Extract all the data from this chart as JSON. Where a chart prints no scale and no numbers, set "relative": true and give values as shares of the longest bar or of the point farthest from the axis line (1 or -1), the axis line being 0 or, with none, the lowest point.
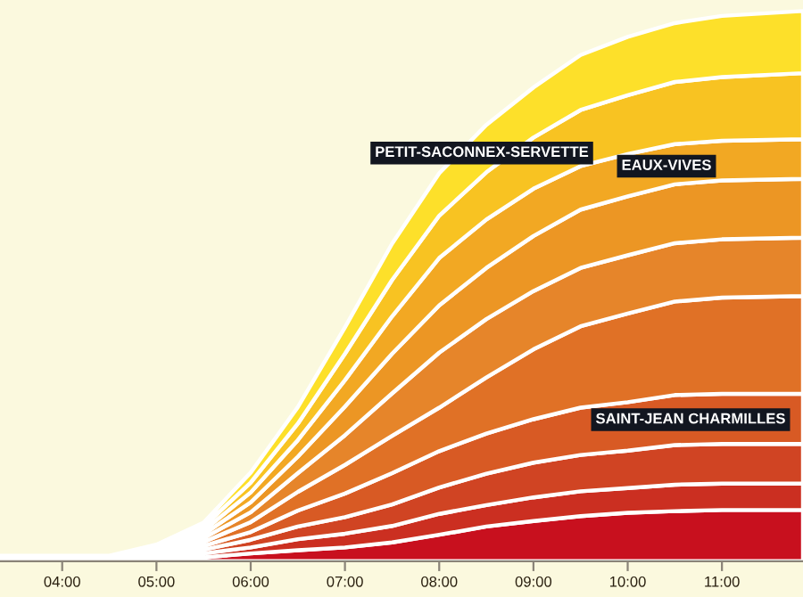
{
  "chart_data": {
    "type": "area",
    "stacked": true,
    "relative": true,
    "legend": false,
    "grid": false,
    "x": [
      3.34,
      4,
      4.5,
      5,
      5.5,
      6,
      6.5,
      7,
      7.5,
      8,
      8.5,
      9,
      9.5,
      10,
      10.5,
      11,
      11.86
    ],
    "xlim": [
      3.34,
      11.86
    ],
    "xticks": [
      {
        "value": 4,
        "label": "04:00"
      },
      {
        "value": 5,
        "label": "05:00"
      },
      {
        "value": 6,
        "label": "06:00"
      },
      {
        "value": 7,
        "label": "07:00"
      },
      {
        "value": 8,
        "label": "08:00"
      },
      {
        "value": 9,
        "label": "09:00"
      },
      {
        "value": 10,
        "label": "10:00"
      },
      {
        "value": 11,
        "label": "11:00"
      }
    ],
    "series": [
      {
        "color": "#c8101e",
        "values": [
          0.001,
          0.001,
          0.001,
          0.003,
          0.007,
          0.014,
          0.02,
          0.025,
          0.034,
          0.048,
          0.063,
          0.073,
          0.082,
          0.088,
          0.091,
          0.093,
          0.093
        ]
      },
      {
        "color": "#cb2f21",
        "values": [
          0.001,
          0.001,
          0.001,
          0.003,
          0.007,
          0.011,
          0.02,
          0.025,
          0.03,
          0.038,
          0.039,
          0.043,
          0.045,
          0.045,
          0.048,
          0.048,
          0.048
        ]
      },
      {
        "color": "#d04423",
        "values": [
          0.001,
          0.001,
          0.001,
          0.003,
          0.007,
          0.014,
          0.023,
          0.03,
          0.039,
          0.048,
          0.057,
          0.063,
          0.066,
          0.068,
          0.072,
          0.072,
          0.072
        ]
      },
      {
        "name": "SAINT-JEAN CHARMILLES",
        "color": "#d85a24",
        "values": [
          0.001,
          0.001,
          0.001,
          0.003,
          0.007,
          0.014,
          0.029,
          0.043,
          0.057,
          0.066,
          0.073,
          0.079,
          0.086,
          0.088,
          0.091,
          0.091,
          0.091
        ]
      },
      {
        "color": "#e07126",
        "values": [
          0.001,
          0.001,
          0.001,
          0.003,
          0.007,
          0.018,
          0.034,
          0.052,
          0.068,
          0.079,
          0.102,
          0.127,
          0.148,
          0.161,
          0.17,
          0.175,
          0.178
        ]
      },
      {
        "color": "#e6852a",
        "values": [
          0.001,
          0.001,
          0.001,
          0.003,
          0.007,
          0.018,
          0.034,
          0.054,
          0.077,
          0.1,
          0.106,
          0.106,
          0.106,
          0.106,
          0.106,
          0.106,
          0.106
        ]
      },
      {
        "color": "#ec9624",
        "values": [
          0.001,
          0.001,
          0.001,
          0.003,
          0.007,
          0.018,
          0.03,
          0.052,
          0.072,
          0.086,
          0.093,
          0.1,
          0.106,
          0.107,
          0.107,
          0.107,
          0.107
        ]
      },
      {
        "name": "EAUX-VIVES",
        "color": "#f2a823",
        "values": [
          0.001,
          0.001,
          0.001,
          0.003,
          0.007,
          0.018,
          0.03,
          0.048,
          0.068,
          0.086,
          0.088,
          0.086,
          0.079,
          0.077,
          0.073,
          0.072,
          0.072
        ]
      },
      {
        "color": "#f8c322",
        "values": [
          0.001,
          0.001,
          0.001,
          0.003,
          0.007,
          0.018,
          0.03,
          0.048,
          0.066,
          0.077,
          0.086,
          0.093,
          0.102,
          0.107,
          0.113,
          0.116,
          0.12
        ]
      },
      {
        "name": "PETIT-SACONNEX-SERVETTE",
        "color": "#fde02a",
        "values": [
          0.001,
          0.001,
          0.001,
          0.003,
          0.007,
          0.018,
          0.03,
          0.048,
          0.066,
          0.077,
          0.086,
          0.091,
          0.1,
          0.106,
          0.107,
          0.111,
          0.113
        ]
      }
    ]
  }
}
